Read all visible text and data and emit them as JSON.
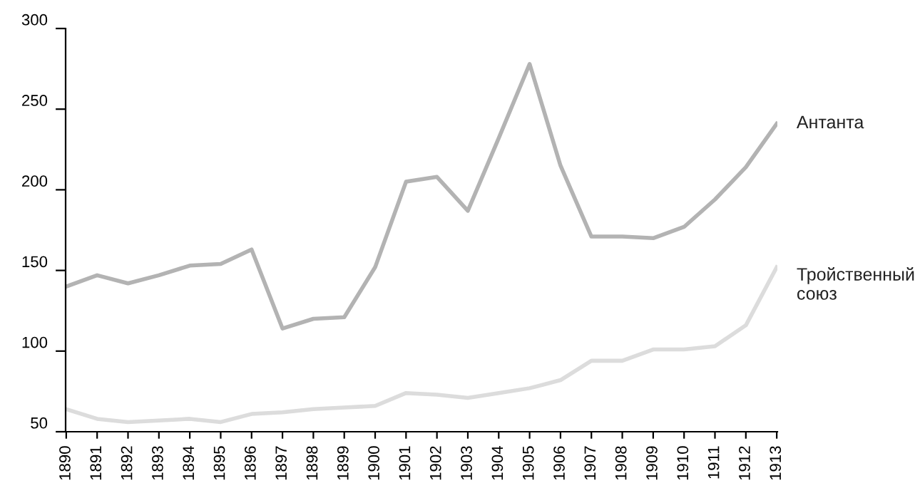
{
  "chart_data": {
    "type": "line",
    "categories": [
      "1890",
      "1891",
      "1892",
      "1893",
      "1894",
      "1895",
      "1896",
      "1897",
      "1898",
      "1899",
      "1900",
      "1901",
      "1902",
      "1903",
      "1904",
      "1905",
      "1906",
      "1907",
      "1908",
      "1909",
      "1910",
      "1911",
      "1912",
      "1913"
    ],
    "series": [
      {
        "name": "Антанта",
        "color": "#b3b3b3",
        "values": [
          140,
          147,
          142,
          147,
          153,
          154,
          163,
          114,
          120,
          121,
          152,
          205,
          208,
          187,
          232,
          278,
          215,
          171,
          171,
          170,
          177,
          194,
          214,
          241
        ]
      },
      {
        "name": "Тройственный\nсоюз",
        "color": "#dcdcdc",
        "values": [
          64,
          58,
          56,
          57,
          58,
          56,
          61,
          62,
          64,
          65,
          66,
          74,
          73,
          71,
          74,
          77,
          82,
          94,
          94,
          101,
          101,
          103,
          116,
          152
        ]
      }
    ],
    "ylim": [
      50,
      300
    ],
    "yticks": [
      50,
      100,
      150,
      200,
      250,
      300
    ],
    "grid": false,
    "legend": false,
    "marker": "none",
    "line_style": "solid"
  }
}
